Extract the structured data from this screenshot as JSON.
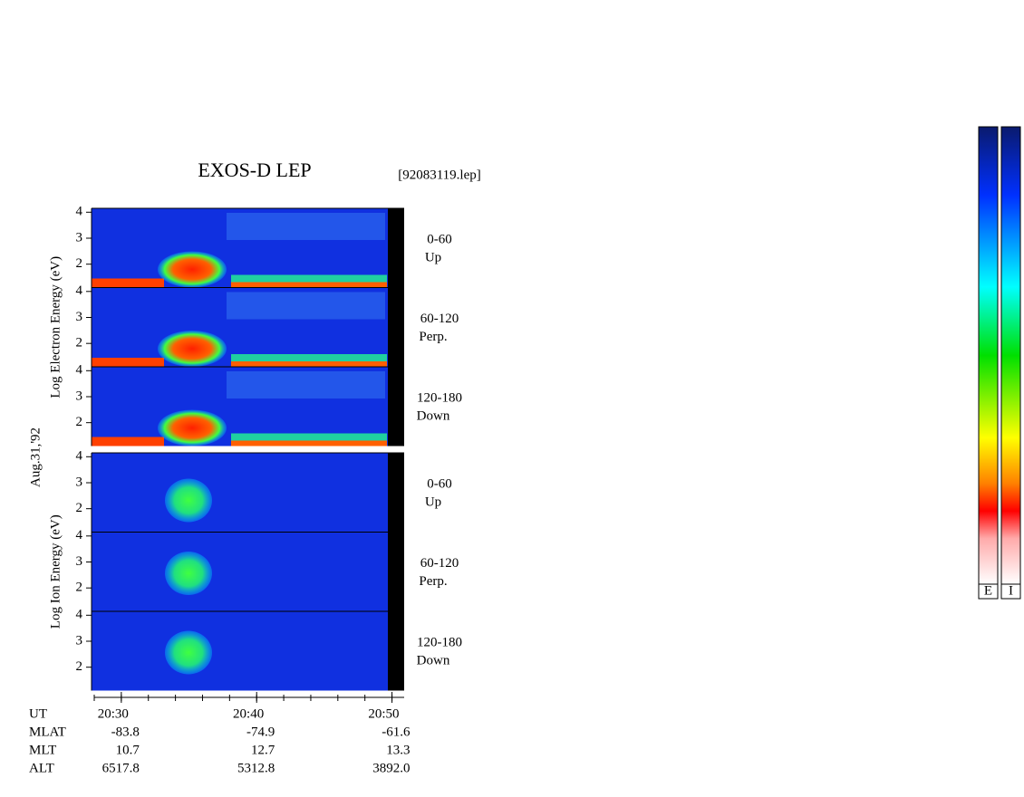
{
  "figure": {
    "title": "EXOS-D LEP",
    "file": "[92083119.lep]",
    "date": "Aug.31,'92",
    "ylim": [
      1.1,
      4.15
    ],
    "yticks": [
      2,
      3,
      4
    ],
    "xlim": [
      28,
      50.9
    ],
    "xticks": [
      {
        "value": 30,
        "label": "20:30"
      },
      {
        "value": 40,
        "label": "20:40"
      },
      {
        "value": 50,
        "label": "20:50"
      }
    ],
    "groups": [
      {
        "ylabel": "Log   Electron   Energy (eV)",
        "panels": [
          {
            "channel": "0-60",
            "direction": "Up"
          },
          {
            "channel": "60-120",
            "direction": "Perp."
          },
          {
            "channel": "120-180",
            "direction": "Down"
          }
        ]
      },
      {
        "ylabel": "Log   Ion   Energy (eV)",
        "panels": [
          {
            "channel": "0-60",
            "direction": "Up"
          },
          {
            "channel": "60-120",
            "direction": "Perp."
          },
          {
            "channel": "120-180",
            "direction": "Down"
          }
        ]
      }
    ],
    "ephemeris": [
      {
        "name": "MLAT",
        "values": [
          "-83.8",
          "-74.9",
          "-61.6"
        ]
      },
      {
        "name": "MLT",
        "values": [
          "10.7",
          "12.7",
          "13.3"
        ]
      },
      {
        "name": "ALT",
        "values": [
          "6517.8",
          "5312.8",
          "3892.0"
        ]
      }
    ],
    "ut_label": "UT",
    "colorbars": [
      "E",
      "I"
    ]
  }
}
